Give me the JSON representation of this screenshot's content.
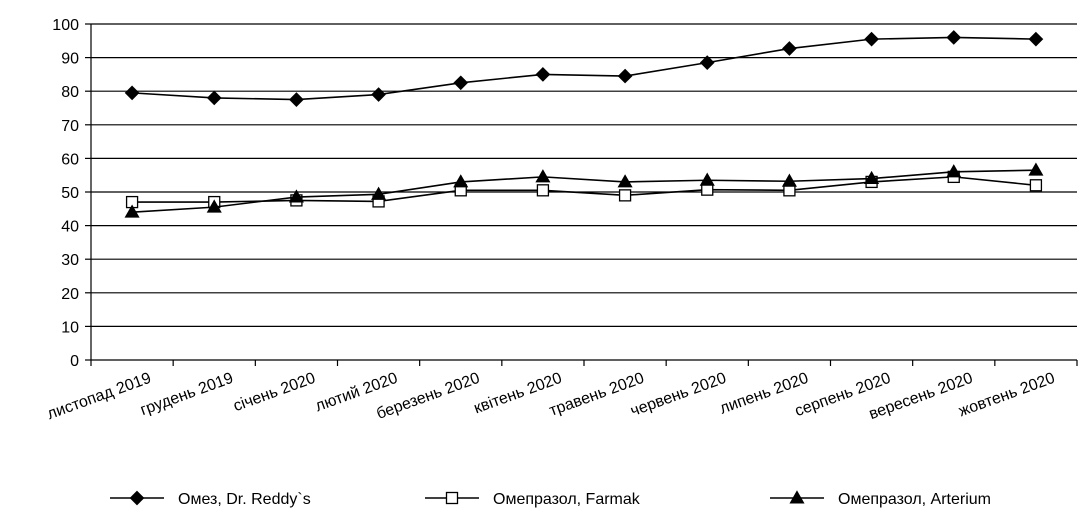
{
  "chart_data": {
    "type": "line",
    "title": "",
    "xlabel": "",
    "ylabel": "",
    "ylim": [
      0,
      100
    ],
    "yticks": [
      "0",
      "10",
      "20",
      "30",
      "40",
      "50",
      "60",
      "70",
      "80",
      "90",
      "100"
    ],
    "categories": [
      "листопад 2019",
      "грудень 2019",
      "січень 2020",
      "лютий 2020",
      "березень 2020",
      "квітень 2020",
      "травень 2020",
      "червень 2020",
      "липень 2020",
      "серпень 2020",
      "вересень 2020",
      "жовтень 2020"
    ],
    "grid": "horizontal",
    "legend_position": "bottom",
    "series": [
      {
        "name": "Омез, Dr. Reddy`s",
        "marker": "diamond",
        "marker_fill": "#000000",
        "color": "#000000",
        "values": [
          79.5,
          78,
          77.5,
          79,
          82.5,
          85,
          84.5,
          88.5,
          92.7,
          95.5,
          96,
          95.5
        ]
      },
      {
        "name": "Омепразол, Farmak",
        "marker": "square",
        "marker_fill": "#ffffff",
        "color": "#000000",
        "values": [
          47,
          47,
          47.5,
          47.2,
          50.5,
          50.5,
          49,
          50.7,
          50.5,
          53,
          54.5,
          52
        ]
      },
      {
        "name": "Омепразол, Arterium",
        "marker": "triangle",
        "marker_fill": "#000000",
        "color": "#000000",
        "values": [
          44,
          45.5,
          48.5,
          49.3,
          53,
          54.5,
          53,
          53.5,
          53.2,
          54,
          56,
          56.5
        ]
      }
    ]
  }
}
